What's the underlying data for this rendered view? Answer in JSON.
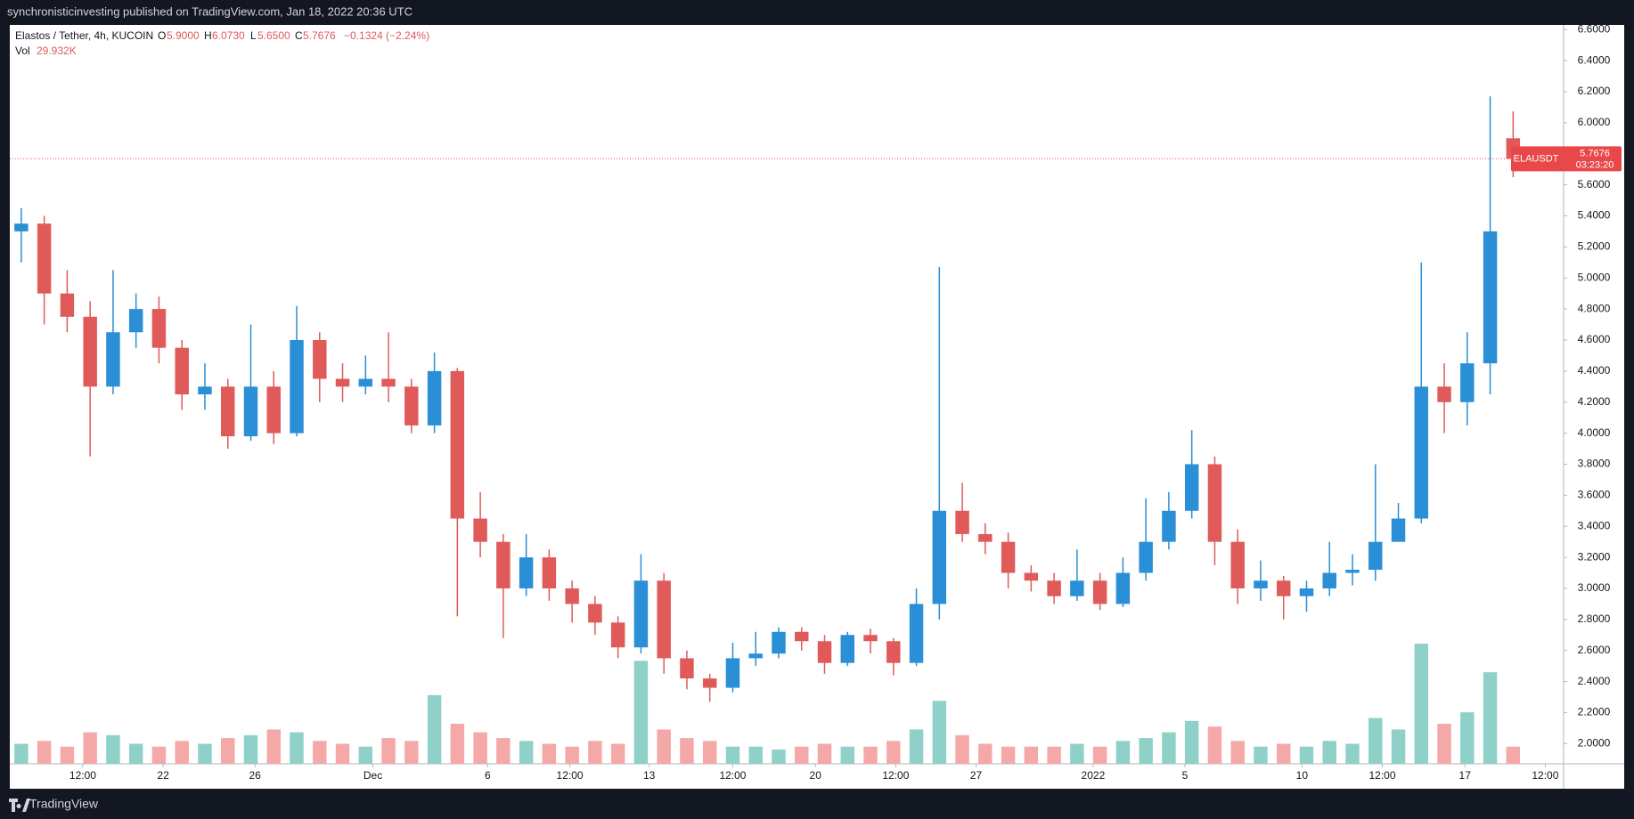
{
  "header": {
    "text": "synchronisticinvesting published on TradingView.com, Jan 18, 2022 20:36 UTC"
  },
  "legend": {
    "symbol": "Elastos / Tether, 4h, KUCOIN",
    "o_label": "O",
    "open": "5.9000",
    "h_label": "H",
    "high": "6.0730",
    "l_label": "L",
    "low": "5.6500",
    "c_label": "C",
    "close": "5.7676",
    "change": "−0.1324 (−2.24%)",
    "vol_value": "29.932K"
  },
  "price_tag": {
    "price": "5.7676",
    "countdown": "03:23:20"
  },
  "footer": {
    "brand": "TradingView"
  },
  "chart_data": {
    "type": "candlestick",
    "series": [
      {
        "name": "ELAUSDT",
        "up_color": "#2a8fd6",
        "down_color": "#e05a5a",
        "open": [
          5.3,
          5.35,
          4.9,
          4.75,
          4.3,
          4.65,
          4.8,
          4.55,
          4.25,
          4.3,
          3.98,
          4.3,
          4.0,
          4.6,
          4.35,
          4.3,
          4.35,
          4.3,
          4.05,
          4.4,
          3.45,
          3.3,
          3.0,
          3.2,
          3.0,
          2.9,
          2.78,
          2.62,
          3.05,
          2.55,
          2.42,
          2.36,
          2.55,
          2.58,
          2.72,
          2.66,
          2.52,
          2.7,
          2.66,
          2.52,
          2.9,
          3.5,
          3.35,
          3.3,
          3.1,
          3.05,
          2.95,
          3.05,
          2.9,
          3.1,
          3.3,
          3.5,
          3.8,
          3.3,
          3.0,
          3.05,
          2.95,
          3.0,
          3.1,
          3.12,
          3.3,
          3.45,
          4.3,
          4.2,
          4.45,
          5.9
        ],
        "high": [
          5.45,
          5.4,
          5.05,
          4.85,
          5.05,
          4.9,
          4.88,
          4.6,
          4.45,
          4.35,
          4.7,
          4.4,
          4.82,
          4.65,
          4.45,
          4.5,
          4.65,
          4.35,
          4.52,
          4.42,
          3.62,
          3.35,
          3.35,
          3.25,
          3.05,
          2.95,
          2.82,
          3.22,
          3.1,
          2.6,
          2.45,
          2.65,
          2.72,
          2.75,
          2.75,
          2.7,
          2.72,
          2.74,
          2.68,
          3.0,
          5.07,
          3.68,
          3.42,
          3.36,
          3.15,
          3.1,
          3.25,
          3.1,
          3.2,
          3.58,
          3.62,
          4.02,
          3.85,
          3.38,
          3.18,
          3.08,
          3.05,
          3.3,
          3.22,
          3.8,
          3.55,
          5.1,
          4.45,
          4.65,
          6.17,
          6.073
        ],
        "low": [
          5.1,
          4.7,
          4.65,
          3.85,
          4.25,
          4.55,
          4.45,
          4.15,
          4.15,
          3.9,
          3.95,
          3.93,
          3.98,
          4.2,
          4.2,
          4.25,
          4.2,
          4.0,
          4.0,
          2.82,
          3.2,
          2.68,
          2.95,
          2.92,
          2.78,
          2.7,
          2.55,
          2.58,
          2.45,
          2.35,
          2.27,
          2.33,
          2.5,
          2.55,
          2.6,
          2.45,
          2.5,
          2.58,
          2.44,
          2.5,
          2.8,
          3.3,
          3.22,
          3.0,
          2.98,
          2.9,
          2.92,
          2.86,
          2.88,
          3.05,
          3.25,
          3.45,
          3.15,
          2.9,
          2.92,
          2.8,
          2.85,
          2.95,
          3.02,
          3.05,
          3.3,
          3.42,
          4.0,
          4.05,
          4.25,
          5.65
        ],
        "close": [
          5.35,
          4.9,
          4.75,
          4.3,
          4.65,
          4.8,
          4.55,
          4.25,
          4.3,
          3.98,
          4.3,
          4.0,
          4.6,
          4.35,
          4.3,
          4.35,
          4.3,
          4.05,
          4.4,
          3.45,
          3.3,
          3.0,
          3.2,
          3.0,
          2.9,
          2.78,
          2.62,
          3.05,
          2.55,
          2.42,
          2.36,
          2.55,
          2.58,
          2.72,
          2.66,
          2.52,
          2.7,
          2.66,
          2.52,
          2.9,
          3.5,
          3.35,
          3.3,
          3.1,
          3.05,
          2.95,
          3.05,
          2.9,
          3.1,
          3.3,
          3.5,
          3.8,
          3.3,
          3.0,
          3.05,
          2.95,
          3.0,
          3.1,
          3.12,
          3.3,
          3.45,
          4.3,
          4.2,
          4.45,
          5.3,
          5.7676
        ]
      }
    ],
    "volume": {
      "name": "Vol",
      "up_color": "#8fd1c9",
      "down_color": "#f4a9a8",
      "values": [
        35,
        40,
        30,
        55,
        50,
        35,
        30,
        40,
        35,
        45,
        50,
        60,
        55,
        40,
        35,
        30,
        45,
        40,
        120,
        70,
        55,
        45,
        40,
        35,
        30,
        40,
        35,
        180,
        60,
        45,
        40,
        30,
        30,
        25,
        30,
        35,
        30,
        30,
        40,
        60,
        110,
        50,
        35,
        30,
        30,
        30,
        35,
        30,
        40,
        45,
        55,
        75,
        65,
        40,
        30,
        35,
        30,
        40,
        35,
        80,
        60,
        210,
        70,
        90,
        160,
        29.932
      ]
    },
    "xlim": [
      -0.5,
      67.2
    ],
    "xticks": [
      {
        "value": 2.68,
        "label": "12:00"
      },
      {
        "value": 6.18,
        "label": "22"
      },
      {
        "value": 10.18,
        "label": "26"
      },
      {
        "value": 15.32,
        "label": "Dec"
      },
      {
        "value": 20.32,
        "label": "6"
      },
      {
        "value": 23.9,
        "label": "12:00"
      },
      {
        "value": 27.36,
        "label": "13"
      },
      {
        "value": 31.0,
        "label": "12:00"
      },
      {
        "value": 34.6,
        "label": "20"
      },
      {
        "value": 38.1,
        "label": "12:00"
      },
      {
        "value": 41.6,
        "label": "27"
      },
      {
        "value": 46.7,
        "label": "2022"
      },
      {
        "value": 50.7,
        "label": "5"
      },
      {
        "value": 55.8,
        "label": "10"
      },
      {
        "value": 59.3,
        "label": "12:00"
      },
      {
        "value": 62.9,
        "label": "17"
      },
      {
        "value": 66.4,
        "label": "12:00"
      }
    ],
    "ylim": [
      1.87,
      6.63
    ],
    "yticks": [
      {
        "value": 2.0,
        "label": "2.0000"
      },
      {
        "value": 2.2,
        "label": "2.2000"
      },
      {
        "value": 2.4,
        "label": "2.4000"
      },
      {
        "value": 2.6,
        "label": "2.6000"
      },
      {
        "value": 2.8,
        "label": "2.8000"
      },
      {
        "value": 3.0,
        "label": "3.0000"
      },
      {
        "value": 3.2,
        "label": "3.2000"
      },
      {
        "value": 3.4,
        "label": "3.4000"
      },
      {
        "value": 3.6,
        "label": "3.6000"
      },
      {
        "value": 3.8,
        "label": "3.8000"
      },
      {
        "value": 4.0,
        "label": "4.0000"
      },
      {
        "value": 4.2,
        "label": "4.2000"
      },
      {
        "value": 4.4,
        "label": "4.4000"
      },
      {
        "value": 4.6,
        "label": "4.6000"
      },
      {
        "value": 4.8,
        "label": "4.8000"
      },
      {
        "value": 5.0,
        "label": "5.0000"
      },
      {
        "value": 5.2,
        "label": "5.2000"
      },
      {
        "value": 5.4,
        "label": "5.4000"
      },
      {
        "value": 5.6,
        "label": "5.6000"
      },
      {
        "value": 5.8,
        "label": "5.8000"
      },
      {
        "value": 6.0,
        "label": "6.0000"
      },
      {
        "value": 6.2,
        "label": "6.2000"
      },
      {
        "value": 6.4,
        "label": "6.4000"
      },
      {
        "value": 6.6,
        "label": "6.6000"
      }
    ],
    "grid": false
  }
}
